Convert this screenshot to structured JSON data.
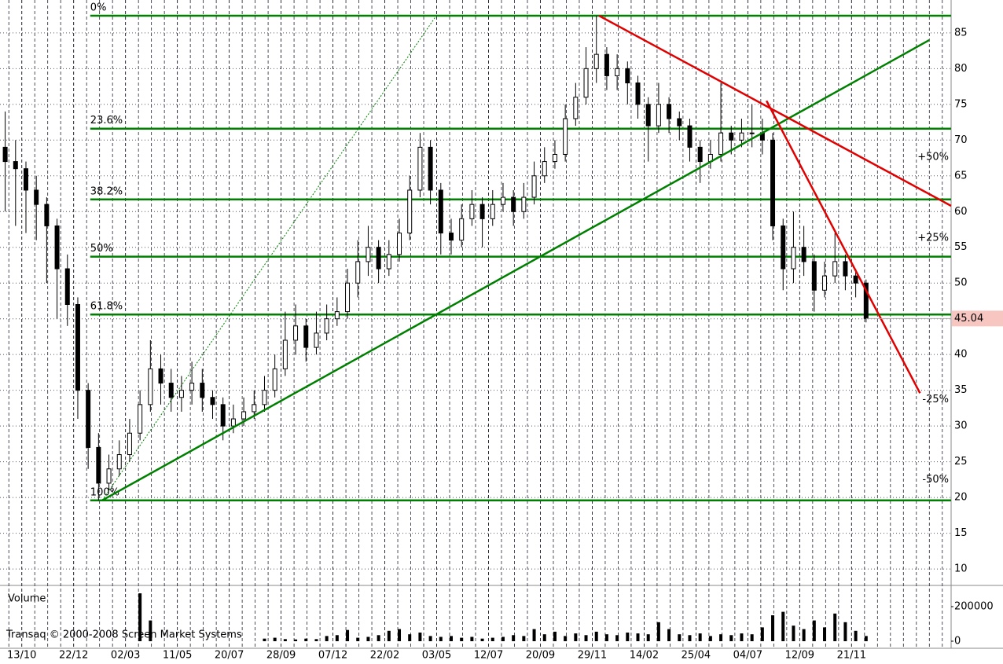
{
  "chart_data": {
    "type": "candlestick",
    "xlim": [
      -0.5,
      91.2
    ],
    "xticks": [
      {
        "value": 1.6,
        "label": "13/10"
      },
      {
        "value": 6.6,
        "label": "22/12"
      },
      {
        "value": 11.6,
        "label": "02/03"
      },
      {
        "value": 16.6,
        "label": "11/05"
      },
      {
        "value": 21.6,
        "label": "20/07"
      },
      {
        "value": 26.6,
        "label": "28/09"
      },
      {
        "value": 31.6,
        "label": "07/12"
      },
      {
        "value": 36.6,
        "label": "22/02"
      },
      {
        "value": 41.6,
        "label": "03/05"
      },
      {
        "value": 46.6,
        "label": "12/07"
      },
      {
        "value": 51.6,
        "label": "20/09"
      },
      {
        "value": 56.6,
        "label": "29/11"
      },
      {
        "value": 61.6,
        "label": "14/02"
      },
      {
        "value": 66.6,
        "label": "25/04"
      },
      {
        "value": 71.6,
        "label": "04/07"
      },
      {
        "value": 76.6,
        "label": "12/09"
      },
      {
        "value": 81.6,
        "label": "21/11"
      }
    ],
    "ylim": [
      7.7,
      89.6
    ],
    "yticks": [
      10,
      15,
      20,
      25,
      30,
      35,
      40,
      45,
      50,
      55,
      60,
      65,
      70,
      75,
      80,
      85
    ],
    "ohlc": [
      [
        69,
        74,
        60,
        67
      ],
      [
        67,
        70,
        58,
        66
      ],
      [
        66,
        67,
        57,
        63
      ],
      [
        63,
        65,
        56,
        61
      ],
      [
        61,
        62,
        50,
        58
      ],
      [
        58,
        59,
        45,
        52
      ],
      [
        52,
        54,
        44,
        47
      ],
      [
        47,
        48,
        31,
        35
      ],
      [
        35,
        36,
        24,
        27
      ],
      [
        27,
        29,
        19.6,
        22
      ],
      [
        22,
        26,
        21,
        24
      ],
      [
        24,
        28,
        23,
        26
      ],
      [
        26,
        31,
        25,
        29
      ],
      [
        29,
        35,
        28,
        33
      ],
      [
        33,
        42,
        32,
        38
      ],
      [
        38,
        40,
        33,
        36
      ],
      [
        36,
        38,
        32,
        34
      ],
      [
        34,
        37,
        32,
        35
      ],
      [
        35,
        39,
        33,
        36
      ],
      [
        36,
        38,
        32,
        34
      ],
      [
        34,
        35,
        31,
        33
      ],
      [
        33,
        34,
        28,
        30
      ],
      [
        30,
        33,
        29,
        31
      ],
      [
        31,
        34,
        30,
        32
      ],
      [
        32,
        35,
        31,
        33
      ],
      [
        33,
        37,
        32,
        35
      ],
      [
        35,
        40,
        34,
        38
      ],
      [
        38,
        46,
        37,
        42
      ],
      [
        42,
        47,
        40,
        44
      ],
      [
        44,
        45,
        39,
        41
      ],
      [
        41,
        46,
        40,
        43
      ],
      [
        43,
        47,
        42,
        45
      ],
      [
        45,
        48,
        44,
        46
      ],
      [
        46,
        52,
        45,
        50
      ],
      [
        50,
        56,
        48,
        53
      ],
      [
        53,
        58,
        51,
        55
      ],
      [
        55,
        56,
        50,
        52
      ],
      [
        52,
        56,
        51,
        54
      ],
      [
        54,
        59,
        53,
        57
      ],
      [
        57,
        65,
        56,
        63
      ],
      [
        63,
        71,
        62,
        69
      ],
      [
        69,
        70,
        61,
        63
      ],
      [
        63,
        64,
        54,
        57
      ],
      [
        57,
        59,
        54,
        56
      ],
      [
        56,
        61,
        55,
        59
      ],
      [
        59,
        63,
        58,
        61
      ],
      [
        61,
        62,
        55,
        59
      ],
      [
        59,
        63,
        58,
        61
      ],
      [
        61,
        64,
        60,
        62
      ],
      [
        62,
        63,
        58,
        60
      ],
      [
        60,
        64,
        59,
        62
      ],
      [
        62,
        67,
        61,
        65
      ],
      [
        65,
        69,
        64,
        67
      ],
      [
        67,
        70,
        66,
        68
      ],
      [
        68,
        75,
        67,
        73
      ],
      [
        73,
        78,
        72,
        76
      ],
      [
        76,
        83,
        75,
        80
      ],
      [
        80,
        87.4,
        78,
        82
      ],
      [
        82,
        83,
        77,
        79
      ],
      [
        79,
        82,
        77,
        80
      ],
      [
        80,
        81,
        75,
        78
      ],
      [
        78,
        79,
        73,
        75
      ],
      [
        75,
        76,
        67,
        72
      ],
      [
        72,
        78,
        71,
        75
      ],
      [
        75,
        76,
        71,
        73
      ],
      [
        73,
        74,
        70,
        72
      ],
      [
        72,
        73,
        67,
        69
      ],
      [
        69,
        70,
        64,
        67
      ],
      [
        67,
        70,
        66,
        68
      ],
      [
        68,
        78,
        67,
        71
      ],
      [
        71,
        72,
        68,
        70
      ],
      [
        70,
        73,
        69,
        71
      ],
      [
        71,
        75,
        69,
        71
      ],
      [
        71,
        73,
        68,
        70
      ],
      [
        70,
        71,
        56,
        58
      ],
      [
        58,
        59,
        49,
        52
      ],
      [
        52,
        60,
        50,
        55
      ],
      [
        55,
        58,
        51,
        53
      ],
      [
        53,
        54,
        46,
        49
      ],
      [
        49,
        53,
        48,
        51
      ],
      [
        51,
        57,
        50,
        53
      ],
      [
        53,
        54,
        49,
        51
      ],
      [
        51,
        52,
        48,
        50
      ],
      [
        50,
        50.5,
        44.5,
        45.04
      ]
    ],
    "volume": {
      "label": "Volume",
      "ylim": [
        -41000,
        322700
      ],
      "yticks": [
        0,
        200000
      ],
      "values": [
        0,
        0,
        0,
        0,
        0,
        0,
        0,
        0,
        0,
        0,
        0,
        0,
        0,
        277000,
        120000,
        0,
        0,
        0,
        0,
        0,
        0,
        0,
        0,
        0,
        0,
        15000,
        20000,
        12000,
        10000,
        15000,
        12000,
        30000,
        35000,
        65000,
        20000,
        25000,
        35000,
        60000,
        70000,
        40000,
        50000,
        30000,
        25000,
        30000,
        20000,
        25000,
        15000,
        20000,
        25000,
        35000,
        30000,
        70000,
        40000,
        55000,
        30000,
        45000,
        35000,
        55000,
        40000,
        35000,
        50000,
        45000,
        40000,
        110000,
        70000,
        40000,
        35000,
        45000,
        30000,
        40000,
        35000,
        45000,
        40000,
        80000,
        150000,
        170000,
        90000,
        70000,
        120000,
        80000,
        160000,
        110000,
        60000,
        30000
      ]
    },
    "fib_levels": [
      {
        "label": "0%",
        "value": 87.4
      },
      {
        "label": "23.6%",
        "value": 71.6
      },
      {
        "label": "38.2%",
        "value": 61.7
      },
      {
        "label": "50%",
        "value": 53.7
      },
      {
        "label": "61.8%",
        "value": 45.6
      },
      {
        "label": "100%",
        "value": 19.6
      }
    ],
    "fib_start": 8.2,
    "trend_lines": [
      {
        "color": "#008000",
        "x": [
          9.35,
          89.1
        ],
        "y": [
          19.6,
          84.0
        ]
      },
      {
        "color": "#e00000",
        "x": [
          57.25,
          91.2
        ],
        "y": [
          87.4,
          60.8
        ]
      },
      {
        "color": "#e00000",
        "x": [
          73.4,
          88.2
        ],
        "y": [
          75.5,
          34.6
        ]
      }
    ],
    "fan_line": {
      "color": "#008000",
      "x": [
        9.35,
        41.56
      ],
      "y": [
        19.6,
        87.4
      ]
    },
    "side_labels": [
      {
        "label": "+50%",
        "value": 67.6,
        "color": "#008000"
      },
      {
        "label": "+25%",
        "value": 56.3,
        "color": "#008000"
      },
      {
        "label": "-25%",
        "value": 33.7,
        "color": "#c00000"
      },
      {
        "label": "-50%",
        "value": 22.5,
        "color": "#c00000"
      }
    ],
    "credit": "Transaq © 2000-2008 Screen Market Systems"
  }
}
